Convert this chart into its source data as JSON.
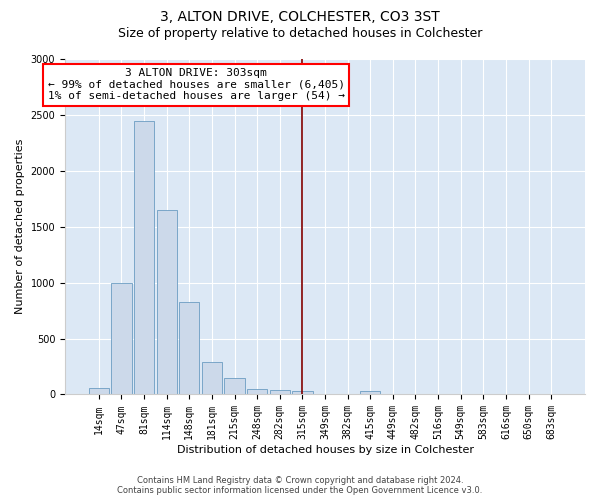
{
  "title": "3, ALTON DRIVE, COLCHESTER, CO3 3ST",
  "subtitle": "Size of property relative to detached houses in Colchester",
  "xlabel": "Distribution of detached houses by size in Colchester",
  "ylabel": "Number of detached properties",
  "bar_color": "#ccd9ea",
  "bar_edgecolor": "#6b9dc2",
  "categories": [
    "14sqm",
    "47sqm",
    "81sqm",
    "114sqm",
    "148sqm",
    "181sqm",
    "215sqm",
    "248sqm",
    "282sqm",
    "315sqm",
    "349sqm",
    "382sqm",
    "415sqm",
    "449sqm",
    "482sqm",
    "516sqm",
    "549sqm",
    "583sqm",
    "616sqm",
    "650sqm",
    "683sqm"
  ],
  "values": [
    55,
    1000,
    2450,
    1650,
    830,
    290,
    145,
    50,
    40,
    30,
    0,
    0,
    30,
    0,
    0,
    0,
    0,
    0,
    0,
    0,
    0
  ],
  "property_label": "3 ALTON DRIVE: 303sqm",
  "annotation_line1": "← 99% of detached houses are smaller (6,405)",
  "annotation_line2": "1% of semi-detached houses are larger (54) →",
  "vline_index": 9,
  "ylim": [
    0,
    3000
  ],
  "yticks": [
    0,
    500,
    1000,
    1500,
    2000,
    2500,
    3000
  ],
  "footer_line1": "Contains HM Land Registry data © Crown copyright and database right 2024.",
  "footer_line2": "Contains public sector information licensed under the Open Government Licence v3.0.",
  "background_color": "#dce8f5",
  "grid_color": "#ffffff",
  "title_fontsize": 10,
  "subtitle_fontsize": 9,
  "ylabel_fontsize": 8,
  "xlabel_fontsize": 8,
  "tick_fontsize": 7,
  "annotation_fontsize": 8,
  "footer_fontsize": 6
}
